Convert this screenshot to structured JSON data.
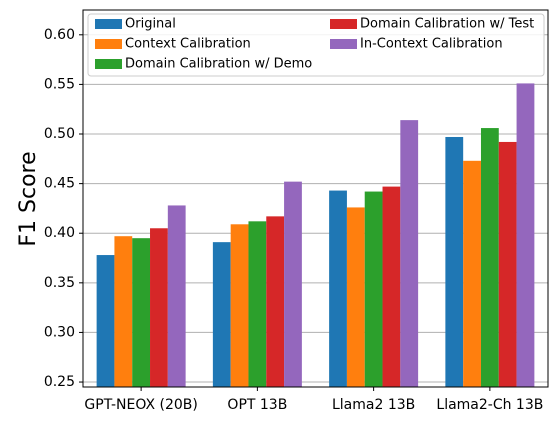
{
  "chart_data": {
    "type": "bar",
    "title": "",
    "xlabel": "",
    "ylabel": "F1 Score",
    "ylim": [
      0.245,
      0.625
    ],
    "yticks": [
      "0.25",
      "0.30",
      "0.35",
      "0.40",
      "0.45",
      "0.50",
      "0.55",
      "0.60"
    ],
    "grid": "horizontal",
    "legend_position": "top",
    "categories": [
      "GPT-NEOX (20B)",
      "OPT 13B",
      "Llama2 13B",
      "Llama2-Ch 13B"
    ],
    "series": [
      {
        "name": "Original",
        "color": "#1f77b4",
        "values": [
          0.378,
          0.391,
          0.443,
          0.497
        ]
      },
      {
        "name": "Context Calibration",
        "color": "#ff7f0e",
        "values": [
          0.397,
          0.409,
          0.426,
          0.473
        ]
      },
      {
        "name": "Domain Calibration w/ Demo",
        "color": "#2ca02c",
        "values": [
          0.395,
          0.412,
          0.442,
          0.506
        ]
      },
      {
        "name": "Domain Calibration w/ Test",
        "color": "#d62728",
        "values": [
          0.405,
          0.417,
          0.447,
          0.492
        ]
      },
      {
        "name": "In-Context Calibration",
        "color": "#9467bd",
        "values": [
          0.428,
          0.452,
          0.514,
          0.551
        ]
      }
    ]
  }
}
